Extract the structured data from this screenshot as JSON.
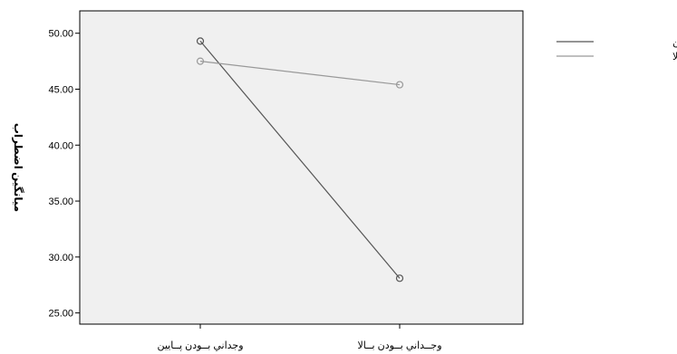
{
  "chart_data": {
    "type": "line",
    "ylabel": "میانگین اضطراب",
    "ylim": [
      24,
      52
    ],
    "y_ticks": [
      25.0,
      30.0,
      35.0,
      40.0,
      45.0,
      50.0
    ],
    "y_tick_labels": [
      "25.00",
      "30.00",
      "35.00",
      "40.00",
      "45.00",
      "50.00"
    ],
    "categories": [
      "وجداني بــودن پــايين",
      "وجــداني بــودن بــالا"
    ],
    "series": [
      {
        "name": "كنـــترل پـــايين",
        "values": [
          49.3,
          28.1
        ],
        "color": "#555555"
      },
      {
        "name": "كنـــترل بـــالا",
        "values": [
          47.5,
          45.4
        ],
        "color": "#999999"
      }
    ],
    "grid": false,
    "legend": "top-right",
    "plot_background": "#f0f0f0"
  }
}
